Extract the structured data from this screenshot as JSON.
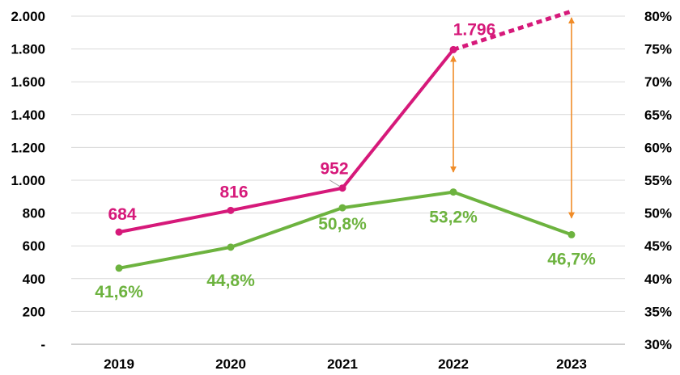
{
  "chart_data": {
    "type": "line",
    "title": "",
    "categories": [
      "2019",
      "2020",
      "2021",
      "2022",
      "2023"
    ],
    "y_left": {
      "ylim": [
        0,
        2000
      ],
      "ticks": [
        0,
        200,
        400,
        600,
        800,
        1000,
        1200,
        1400,
        1600,
        1800,
        2000
      ],
      "tick_labels": [
        "-",
        "200",
        "400",
        "600",
        "800",
        "1.000",
        "1.200",
        "1.400",
        "1.600",
        "1.800",
        "2.000"
      ]
    },
    "y_right": {
      "ylim": [
        30,
        80
      ],
      "ticks": [
        30,
        35,
        40,
        45,
        50,
        55,
        60,
        65,
        70,
        75,
        80
      ],
      "tick_labels": [
        "30%",
        "35%",
        "40%",
        "45%",
        "50%",
        "55%",
        "60%",
        "65%",
        "70%",
        "75%",
        "80%"
      ]
    },
    "grid": "horizontal",
    "series": [
      {
        "axis": "left",
        "color": "#d6197a",
        "values": [
          684,
          816,
          952,
          1796,
          null
        ],
        "data_labels": [
          "684",
          "816",
          "952",
          "1.796",
          ""
        ],
        "projection": {
          "from_category": "2022",
          "to_category": "2023",
          "to_value": 2030,
          "style": "dotted"
        }
      },
      {
        "axis": "right",
        "color": "#6db33f",
        "values": [
          41.6,
          44.8,
          50.8,
          53.2,
          46.7
        ],
        "data_labels": [
          "41,6%",
          "44,8%",
          "50,8%",
          "53,2%",
          "46,7%"
        ]
      }
    ],
    "annotations": [
      {
        "type": "double-arrow",
        "category": "2022",
        "from_value": 1796,
        "to_value": 1010,
        "axis": "left",
        "color": "#f08c28"
      },
      {
        "type": "double-arrow",
        "category": "2023",
        "from_value": 2030,
        "to_value": 730,
        "axis": "left",
        "color": "#f08c28"
      }
    ],
    "colors": {
      "grid": "#d9d9d9",
      "axis": "#bfbfbf",
      "text": "#000000"
    }
  }
}
